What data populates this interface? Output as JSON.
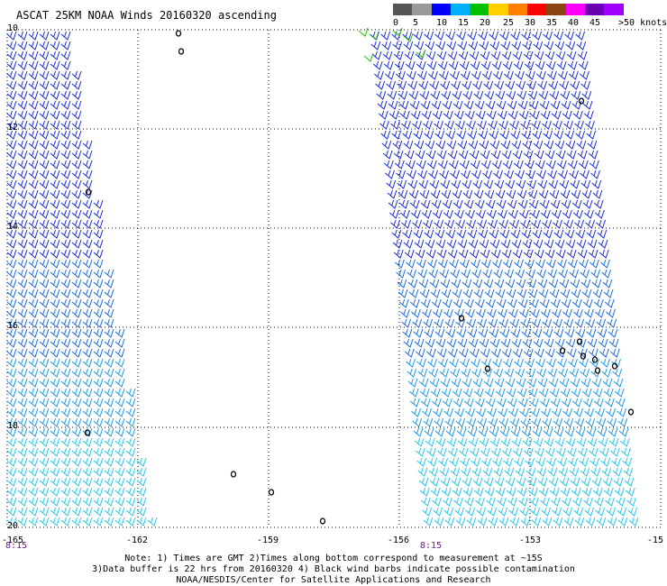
{
  "title": "ASCAT 25KM NOAA Winds 20160320 ascending",
  "scale": {
    "labels": [
      "0",
      "5",
      "10",
      "15",
      "20",
      "25",
      "30",
      "35",
      "40",
      "45",
      ">50 knots"
    ],
    "colors": [
      "#555555",
      "#999999",
      "#0000ff",
      "#00b0ff",
      "#00c000",
      "#ffd000",
      "#ff8000",
      "#ff0000",
      "#8b4513",
      "#ff00ff",
      "#6a00b0",
      "#a000ff"
    ]
  },
  "axes": {
    "lat_labels": [
      "10",
      "12",
      "14",
      "16",
      "18",
      "20"
    ],
    "lon_labels": [
      "-165",
      "-162",
      "-159",
      "-156",
      "-153",
      "-15"
    ]
  },
  "swath_times": [
    "8:15",
    "8:15"
  ],
  "notes": [
    "Note: 1) Times are GMT 2)Times along bottom correspond to measurement at ~15S",
    "3)Data buffer is 22 hrs from 20160320 4) Black wind barbs indicate possible contamination",
    "NOAA/NESDIS/Center for Satellite Applications and Research"
  ]
}
